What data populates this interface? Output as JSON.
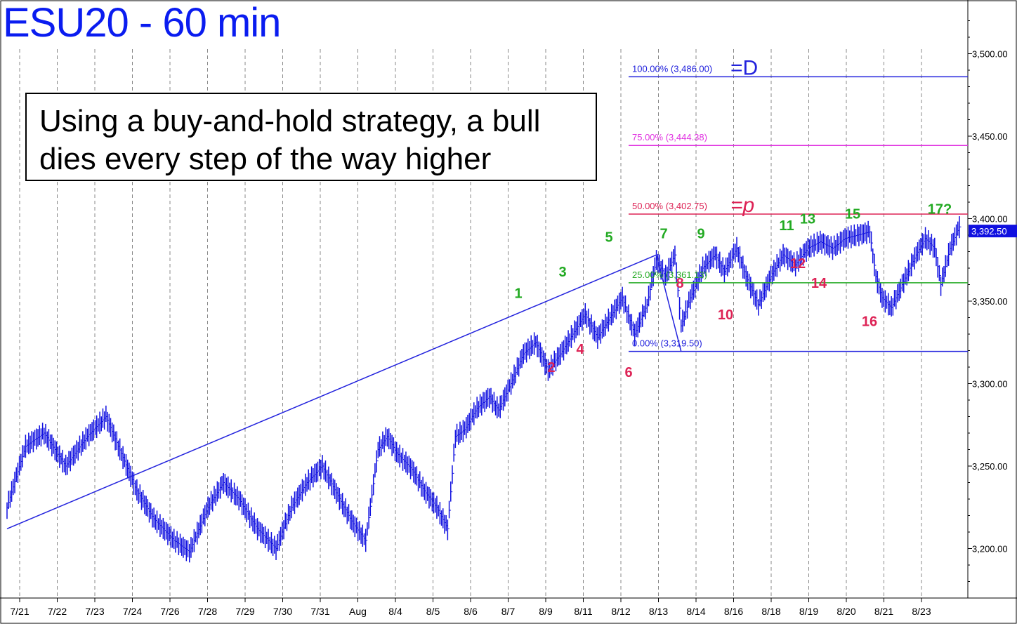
{
  "chart_data": {
    "type": "candlestick",
    "title": "ESU20 - 60 min",
    "annotation": [
      "Using a buy-and-hold strategy, a bull",
      "dies every step of the way higher"
    ],
    "ylim": [
      3170,
      3530
    ],
    "yticks": [
      "3,200.00",
      "3,250.00",
      "3,300.00",
      "3,350.00",
      "3,400.00",
      "3,450.00",
      "3,500.00"
    ],
    "ytick_values": [
      3200,
      3250,
      3300,
      3350,
      3400,
      3450,
      3500
    ],
    "xticks": [
      "7/21",
      "7/22",
      "7/23",
      "7/24",
      "7/26",
      "7/28",
      "7/29",
      "7/30",
      "7/31",
      "Aug",
      "8/4",
      "8/5",
      "8/6",
      "8/7",
      "8/9",
      "8/11",
      "8/12",
      "8/13",
      "8/14",
      "8/16",
      "8/18",
      "8/19",
      "8/20",
      "8/21",
      "8/23"
    ],
    "last_price": "3,392.50",
    "last_value": 3392.5,
    "price_path": [
      [
        0,
        3225
      ],
      [
        12,
        3262
      ],
      [
        24,
        3270
      ],
      [
        38,
        3250
      ],
      [
        52,
        3268
      ],
      [
        64,
        3280
      ],
      [
        72,
        3262
      ],
      [
        84,
        3235
      ],
      [
        95,
        3218
      ],
      [
        108,
        3205
      ],
      [
        118,
        3198
      ],
      [
        130,
        3225
      ],
      [
        140,
        3240
      ],
      [
        150,
        3230
      ],
      [
        162,
        3212
      ],
      [
        174,
        3200
      ],
      [
        184,
        3225
      ],
      [
        194,
        3240
      ],
      [
        204,
        3250
      ],
      [
        214,
        3232
      ],
      [
        224,
        3215
      ],
      [
        232,
        3205
      ],
      [
        240,
        3260
      ],
      [
        246,
        3268
      ],
      [
        252,
        3258
      ],
      [
        262,
        3248
      ],
      [
        270,
        3235
      ],
      [
        278,
        3225
      ],
      [
        285,
        3212
      ],
      [
        290,
        3268
      ],
      [
        296,
        3272
      ],
      [
        304,
        3285
      ],
      [
        312,
        3292
      ],
      [
        318,
        3284
      ],
      [
        326,
        3300
      ],
      [
        334,
        3318
      ],
      [
        342,
        3325
      ],
      [
        350,
        3308
      ],
      [
        358,
        3318
      ],
      [
        366,
        3330
      ],
      [
        374,
        3342
      ],
      [
        382,
        3328
      ],
      [
        390,
        3340
      ],
      [
        398,
        3352
      ],
      [
        406,
        3330
      ],
      [
        414,
        3348
      ],
      [
        420,
        3375
      ],
      [
        426,
        3365
      ],
      [
        432,
        3378
      ],
      [
        436,
        3335
      ],
      [
        442,
        3352
      ],
      [
        450,
        3370
      ],
      [
        458,
        3378
      ],
      [
        464,
        3368
      ],
      [
        472,
        3382
      ],
      [
        478,
        3365
      ],
      [
        486,
        3348
      ],
      [
        494,
        3365
      ],
      [
        502,
        3378
      ],
      [
        510,
        3372
      ],
      [
        518,
        3382
      ],
      [
        526,
        3386
      ],
      [
        534,
        3382
      ],
      [
        542,
        3388
      ],
      [
        550,
        3390
      ],
      [
        558,
        3392
      ],
      [
        562,
        3365
      ],
      [
        566,
        3352
      ],
      [
        572,
        3346
      ],
      [
        580,
        3362
      ],
      [
        588,
        3378
      ],
      [
        594,
        3388
      ],
      [
        600,
        3382
      ],
      [
        604,
        3360
      ],
      [
        610,
        3382
      ],
      [
        616,
        3395
      ]
    ],
    "pattern_line": [
      [
        0,
        3212
      ],
      [
        420,
        3378
      ],
      [
        436,
        3319.5
      ]
    ],
    "fib_levels": [
      {
        "label": "100.00% (3,486.00)",
        "value": 3486.0,
        "color": "#2222dd",
        "suffix": "=D",
        "suffix_color": "#2222dd"
      },
      {
        "label": "75.00% (3,444.38)",
        "value": 3444.38,
        "color": "#e030e0",
        "suffix": "",
        "suffix_color": ""
      },
      {
        "label": "50.00% (3,402.75)",
        "value": 3402.75,
        "color": "#dd2255",
        "suffix": "=p",
        "suffix_color": "#dd2255"
      },
      {
        "label": "25.00% (3,361.13)",
        "value": 3361.13,
        "color": "#22aa22",
        "suffix": "",
        "suffix_color": ""
      },
      {
        "label": "0.00% (3,319.50)",
        "value": 3319.5,
        "color": "#2222dd",
        "suffix": "",
        "suffix_color": ""
      }
    ],
    "wave_labels": [
      {
        "text": "1",
        "color": "#22aa22",
        "price": 3352
      },
      {
        "text": "2",
        "color": "#dd2255",
        "price": 3307
      },
      {
        "text": "3",
        "color": "#22aa22",
        "price": 3365
      },
      {
        "text": "4",
        "color": "#dd2255",
        "price": 3318
      },
      {
        "text": "5",
        "color": "#22aa22",
        "price": 3386
      },
      {
        "text": "6",
        "color": "#dd2255",
        "price": 3304
      },
      {
        "text": "7",
        "color": "#22aa22",
        "price": 3388
      },
      {
        "text": "8",
        "color": "#dd2255",
        "price": 3358
      },
      {
        "text": "9",
        "color": "#22aa22",
        "price": 3388
      },
      {
        "text": "10",
        "color": "#dd2255",
        "price": 3339
      },
      {
        "text": "11",
        "color": "#22aa22",
        "price": 3393
      },
      {
        "text": "12",
        "color": "#dd2255",
        "price": 3370
      },
      {
        "text": "13",
        "color": "#22aa22",
        "price": 3397
      },
      {
        "text": "14",
        "color": "#dd2255",
        "price": 3358
      },
      {
        "text": "15",
        "color": "#22aa22",
        "price": 3400
      },
      {
        "text": "16",
        "color": "#dd2255",
        "price": 3335
      },
      {
        "text": "17?",
        "color": "#22aa22",
        "price": 3403
      }
    ]
  },
  "colors": {
    "price": "#1010e0",
    "axis": "#000000",
    "grid": "#888888",
    "title": "#0a1cf0",
    "last_price_bg": "#1010e0"
  }
}
